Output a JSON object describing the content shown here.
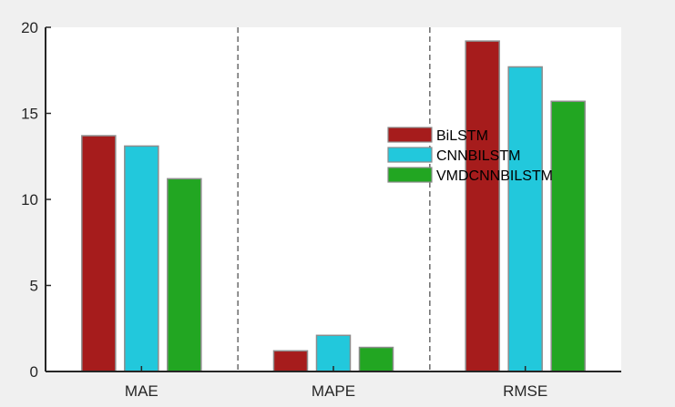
{
  "chart_data": {
    "type": "bar",
    "categories": [
      "MAE",
      "MAPE",
      "RMSE"
    ],
    "series": [
      {
        "name": "BiLSTM",
        "values": [
          13.7,
          1.2,
          19.2
        ],
        "color": "#a61c1c"
      },
      {
        "name": "CNNBILSTM",
        "values": [
          13.1,
          2.1,
          17.7
        ],
        "color": "#22c8dc"
      },
      {
        "name": "VMDCNNBILSTM",
        "values": [
          11.2,
          1.4,
          15.7
        ],
        "color": "#22a622"
      }
    ],
    "ylim": [
      0,
      20
    ],
    "yticks": [
      "0",
      "5",
      "10",
      "15",
      "20"
    ],
    "title": "",
    "xlabel": "",
    "ylabel": "",
    "grid": false,
    "group_separators": "dashed",
    "legend_position": "center-right"
  }
}
